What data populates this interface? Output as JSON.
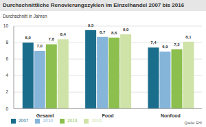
{
  "chart_data": {
    "type": "bar",
    "title": "Durchschnittliche Renovierungszyklen im Einzelhandel 2007 bis 2016",
    "y_label": "Durchschnitt in Jahren",
    "source": "Quelle: EHI",
    "categories": [
      "Gesamt",
      "Food",
      "Nonfood"
    ],
    "series": [
      {
        "name": "2007",
        "color": "#1b6d8c",
        "values": [
          8.0,
          9.5,
          7.4
        ],
        "value_labels": [
          "8,0",
          "9,5",
          "7,4"
        ]
      },
      {
        "name": "2010",
        "color": "#86b5da",
        "values": [
          7.0,
          8.7,
          6.9
        ],
        "value_labels": [
          "7,0",
          "8,7",
          "6,9"
        ]
      },
      {
        "name": "2013",
        "color": "#8cbf4e",
        "values": [
          7.8,
          8.6,
          7.2
        ],
        "value_labels": [
          "7,8",
          "8,6",
          "7,2"
        ]
      },
      {
        "name": "2016",
        "color": "#cfe3a8",
        "values": [
          8.4,
          9.0,
          8.1
        ],
        "value_labels": [
          "8,4",
          "9,0",
          "8,1"
        ]
      }
    ],
    "ylim": [
      0,
      10
    ],
    "yticks": [
      0,
      2,
      4,
      6,
      8,
      10
    ],
    "grid": true,
    "legend": "bottom-left",
    "data_labels": true
  }
}
